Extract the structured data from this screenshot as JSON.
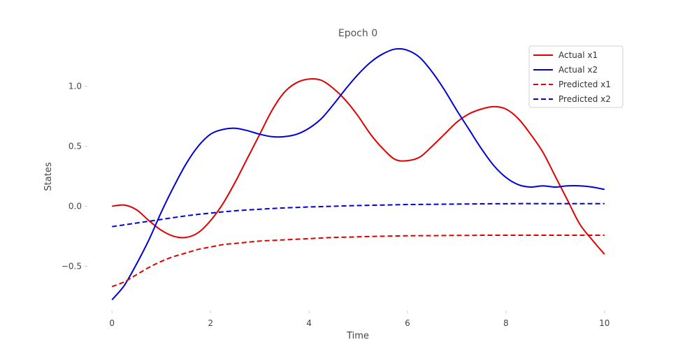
{
  "chart_data": {
    "type": "line",
    "title": "Epoch 0",
    "xlabel": "Time",
    "ylabel": "States",
    "xlim": [
      -0.5,
      10.5
    ],
    "ylim": [
      -0.87,
      1.37
    ],
    "xticks": [
      0,
      2,
      4,
      6,
      8,
      10
    ],
    "yticks": [
      -0.5,
      0.0,
      0.5,
      1.0
    ],
    "xtick_labels": [
      "0",
      "2",
      "4",
      "6",
      "8",
      "10"
    ],
    "ytick_labels": [
      "−0.5",
      "0.0",
      "0.5",
      "1.0"
    ],
    "grid": false,
    "legend_position": "top-right",
    "x": [
      0,
      0.25,
      0.5,
      0.75,
      1,
      1.25,
      1.5,
      1.75,
      2,
      2.25,
      2.5,
      2.75,
      3,
      3.25,
      3.5,
      3.75,
      4,
      4.25,
      4.5,
      4.75,
      5,
      5.25,
      5.5,
      5.75,
      6,
      6.25,
      6.5,
      6.75,
      7,
      7.25,
      7.5,
      7.75,
      8,
      8.25,
      8.5,
      8.75,
      9,
      9.25,
      9.5,
      9.75,
      10
    ],
    "series": [
      {
        "name": "Actual x1",
        "color": "#e00000",
        "style": "solid",
        "values": [
          0.0,
          0.01,
          -0.03,
          -0.12,
          -0.2,
          -0.25,
          -0.26,
          -0.22,
          -0.12,
          0.02,
          0.2,
          0.4,
          0.6,
          0.8,
          0.95,
          1.03,
          1.06,
          1.05,
          0.98,
          0.88,
          0.75,
          0.6,
          0.48,
          0.39,
          0.38,
          0.41,
          0.5,
          0.6,
          0.7,
          0.77,
          0.81,
          0.83,
          0.81,
          0.73,
          0.6,
          0.45,
          0.25,
          0.05,
          -0.15,
          -0.28,
          -0.4
        ]
      },
      {
        "name": "Actual x2",
        "color": "#0000d8",
        "style": "solid",
        "values": [
          -0.78,
          -0.66,
          -0.48,
          -0.28,
          -0.05,
          0.16,
          0.35,
          0.5,
          0.6,
          0.64,
          0.65,
          0.63,
          0.6,
          0.58,
          0.58,
          0.6,
          0.65,
          0.73,
          0.85,
          0.98,
          1.1,
          1.2,
          1.27,
          1.31,
          1.3,
          1.24,
          1.12,
          0.97,
          0.8,
          0.64,
          0.48,
          0.34,
          0.24,
          0.18,
          0.16,
          0.17,
          0.16,
          0.17,
          0.17,
          0.16,
          0.14
        ]
      },
      {
        "name": "Predicted x1",
        "color": "#e00000",
        "style": "dashed",
        "values": [
          -0.67,
          -0.63,
          -0.57,
          -0.51,
          -0.46,
          -0.42,
          -0.39,
          -0.36,
          -0.34,
          -0.32,
          -0.31,
          -0.3,
          -0.29,
          -0.285,
          -0.28,
          -0.275,
          -0.27,
          -0.265,
          -0.26,
          -0.258,
          -0.255,
          -0.252,
          -0.25,
          -0.248,
          -0.246,
          -0.245,
          -0.245,
          -0.244,
          -0.243,
          -0.243,
          -0.242,
          -0.242,
          -0.242,
          -0.242,
          -0.242,
          -0.242,
          -0.242,
          -0.242,
          -0.242,
          -0.242,
          -0.242
        ]
      },
      {
        "name": "Predicted x2",
        "color": "#0000d8",
        "style": "dashed",
        "values": [
          -0.17,
          -0.155,
          -0.14,
          -0.125,
          -0.11,
          -0.095,
          -0.08,
          -0.068,
          -0.057,
          -0.047,
          -0.038,
          -0.031,
          -0.025,
          -0.019,
          -0.014,
          -0.01,
          -0.006,
          -0.003,
          0.0,
          0.003,
          0.006,
          0.008,
          0.01,
          0.012,
          0.014,
          0.015,
          0.016,
          0.017,
          0.018,
          0.019,
          0.02,
          0.021,
          0.021,
          0.022,
          0.022,
          0.022,
          0.022,
          0.022,
          0.022,
          0.022,
          0.022
        ]
      }
    ]
  }
}
